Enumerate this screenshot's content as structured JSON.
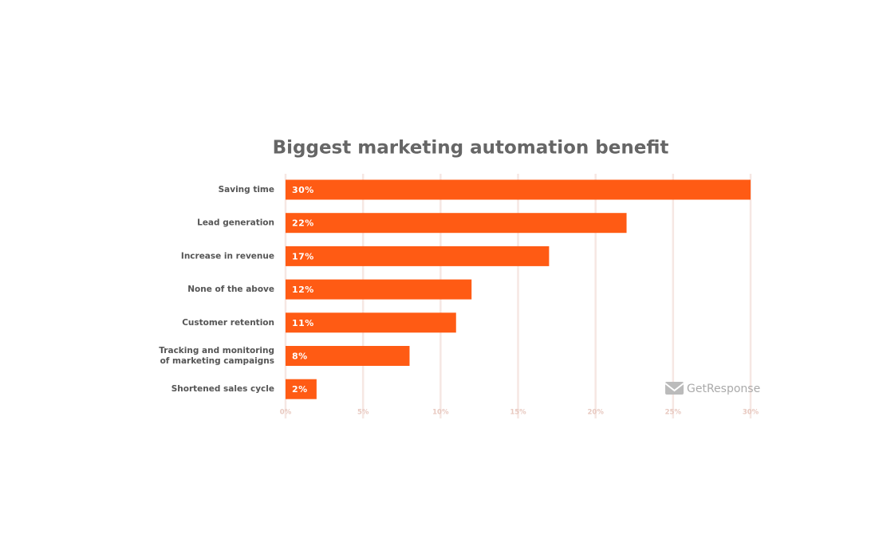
{
  "chart_data": {
    "type": "bar",
    "orientation": "horizontal",
    "title": "Biggest marketing automation benefit",
    "categories": [
      "Saving time",
      "Lead generation",
      "Increase in revenue",
      "None of the above",
      "Customer retention",
      "Tracking and monitoring\nof marketing campaigns",
      "Shortened sales cycle"
    ],
    "values": [
      30,
      22,
      17,
      12,
      11,
      8,
      2
    ],
    "value_labels": [
      "30%",
      "22%",
      "17%",
      "12%",
      "11%",
      "8%",
      "2%"
    ],
    "color": "#ff5b14",
    "xlim": [
      0,
      30
    ],
    "xticks": [
      {
        "value": 0,
        "label": "0%"
      },
      {
        "value": 5,
        "label": "5%"
      },
      {
        "value": 10,
        "label": "10%"
      },
      {
        "value": 15,
        "label": "15%"
      },
      {
        "value": 20,
        "label": "20%"
      },
      {
        "value": 25,
        "label": "25%"
      },
      {
        "value": 30,
        "label": "30%"
      }
    ],
    "grid": true,
    "logo": "GetResponse"
  }
}
